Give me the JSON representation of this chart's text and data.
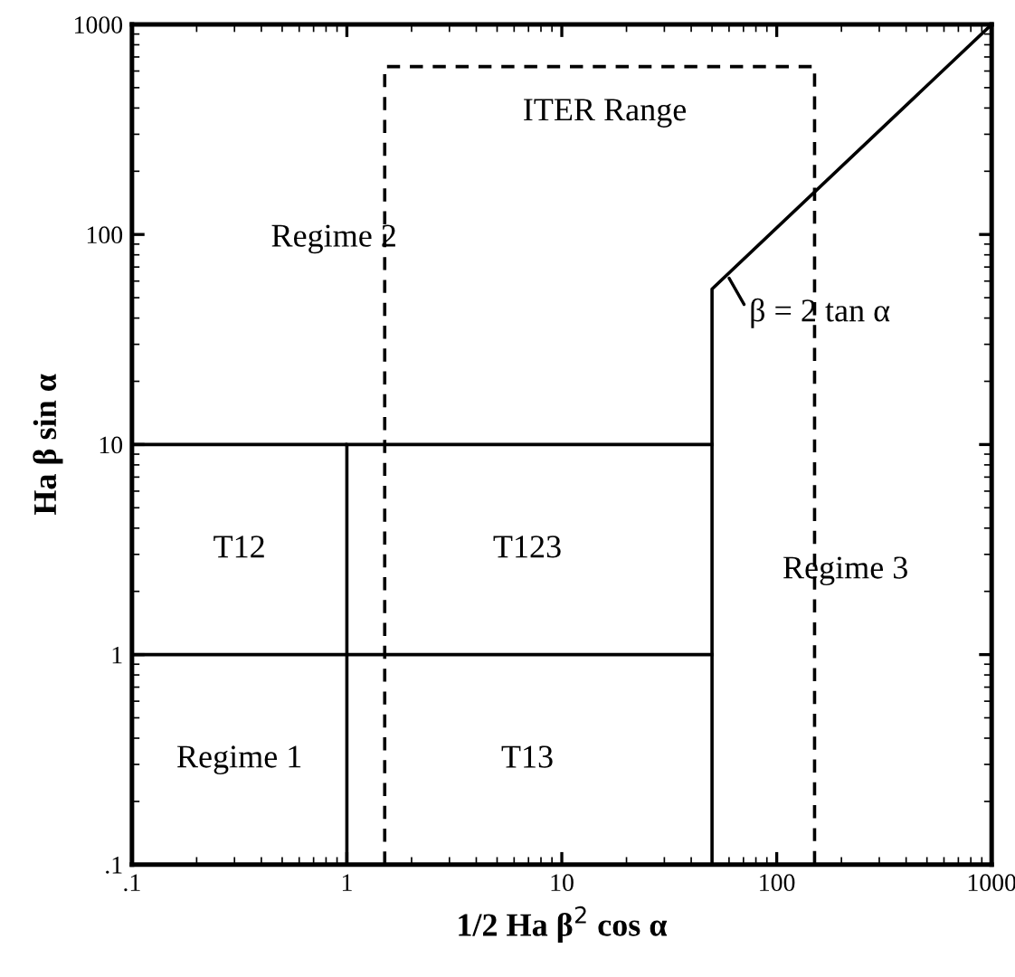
{
  "chart_data": {
    "type": "line",
    "xlabel": "1/2 Ha β$^{2}$ cos α",
    "ylabel": "Ha β sin α",
    "log": "xy",
    "grid": false,
    "marker": "none",
    "xlim": [
      0.1,
      1000
    ],
    "ylim": [
      0.1,
      1000
    ],
    "xticks": [
      {
        "value": 0.1,
        "label": ".1"
      },
      1,
      10,
      100,
      1000
    ],
    "yticks": [
      {
        "value": 0.1,
        "label": ".1"
      },
      1,
      10,
      100,
      1000
    ],
    "series": [
      {
        "color": "#000000",
        "x": [
          0.1,
          1,
          1
        ],
        "values": [
          10,
          10,
          0.1
        ]
      },
      {
        "color": "#000000",
        "x": [
          1,
          50
        ],
        "values": [
          10,
          10
        ]
      },
      {
        "color": "#000000",
        "x": [
          0.1,
          50
        ],
        "values": [
          1,
          1
        ]
      },
      {
        "color": "#000000",
        "x": [
          50,
          50,
          1000
        ],
        "values": [
          0.1,
          55,
          1000
        ]
      },
      {
        "color": "#000000",
        "x": [
          1.5,
          1.5,
          150,
          150
        ],
        "values": [
          0.1,
          630,
          630,
          0.1
        ],
        "line_style": "dashed"
      }
    ],
    "annotations": [
      "ITER Range",
      "Regime 2",
      "T12",
      "T123",
      "Regime 1",
      "T13",
      "Regime 3",
      {
        "text": "β = 2 tan α",
        "x": 60,
        "y": 62
      }
    ]
  }
}
